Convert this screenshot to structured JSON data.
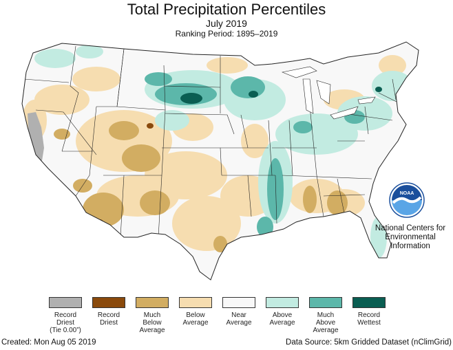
{
  "title": "Total Precipitation Percentiles",
  "subtitle": "July 2019",
  "ranking_period": "Ranking Period: 1895–2019",
  "agency": {
    "logo_icon": "noaa-logo-icon",
    "line1": "National Centers for",
    "line2": "Environmental",
    "line3": "Information"
  },
  "legend": [
    {
      "line1": "Record",
      "line2": "Driest",
      "line3": "(Tie 0.00”)",
      "color": "#b0b0b0"
    },
    {
      "line1": "Record",
      "line2": "Driest",
      "line3": "",
      "color": "#8a4a0c"
    },
    {
      "line1": "Much",
      "line2": "Below",
      "line3": "Average",
      "color": "#d2ad62"
    },
    {
      "line1": "Below",
      "line2": "Average",
      "line3": "",
      "color": "#f6ddb0"
    },
    {
      "line1": "Near",
      "line2": "Average",
      "line3": "",
      "color": "#f8f8f8"
    },
    {
      "line1": "Above",
      "line2": "Average",
      "line3": "",
      "color": "#c2ebe1"
    },
    {
      "line1": "Much",
      "line2": "Above",
      "line3": "Average",
      "color": "#5cb7aa"
    },
    {
      "line1": "Record",
      "line2": "Wettest",
      "line3": "",
      "color": "#0a5e52"
    }
  ],
  "footer": {
    "created": "Created: Mon Aug 05 2019",
    "source": "Data Source: 5km Gridded Dataset (nClimGrid)"
  }
}
